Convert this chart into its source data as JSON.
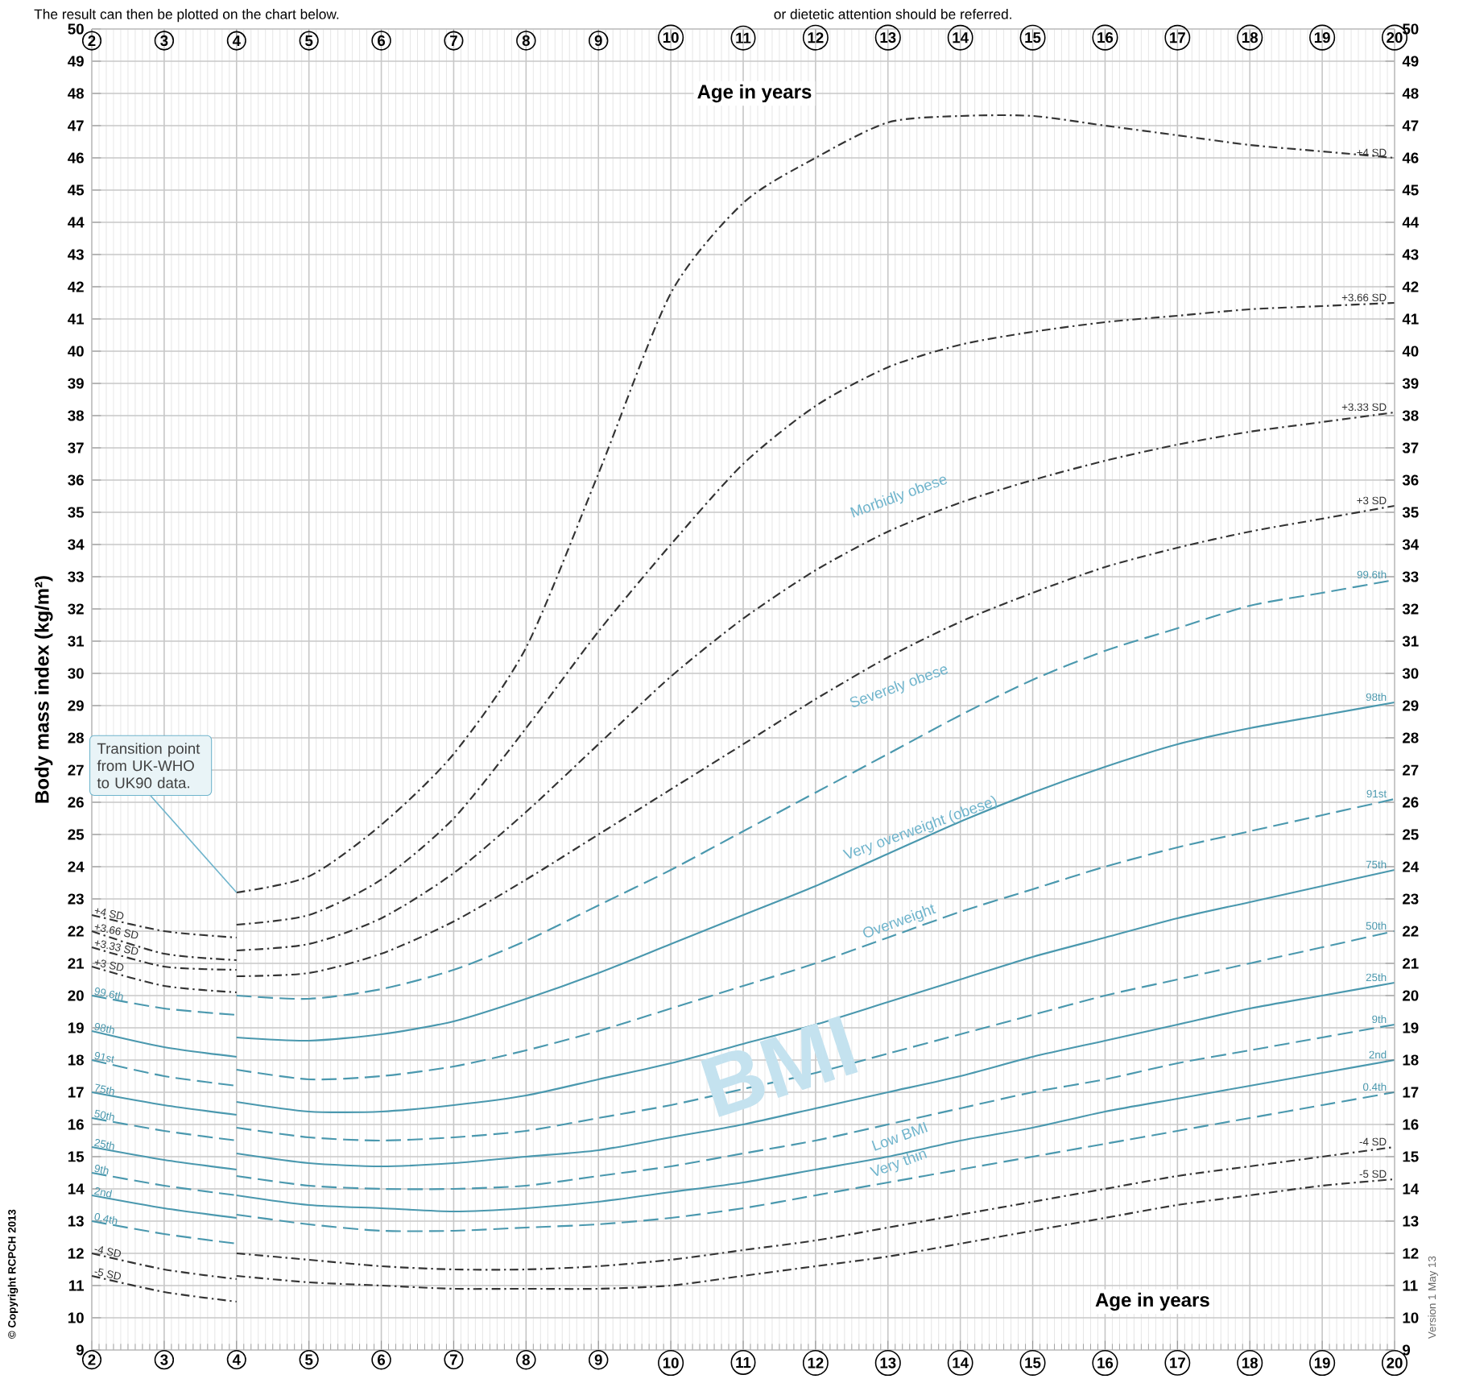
{
  "chart_data": {
    "type": "line",
    "ylabel": "Body mass index (kg/m²)",
    "xlim": [
      2,
      20
    ],
    "xticks": [
      2,
      3,
      4,
      5,
      6,
      7,
      8,
      9,
      10,
      11,
      12,
      13,
      14,
      15,
      16,
      17,
      18,
      19,
      20
    ],
    "x2lim": [
      2,
      20
    ],
    "x2ticks": [
      2,
      3,
      4,
      5,
      6,
      7,
      8,
      9,
      10,
      11,
      12,
      13,
      14,
      15,
      16,
      17,
      18,
      19,
      20
    ],
    "ylim": [
      9,
      50
    ],
    "yticks": [
      9,
      10,
      11,
      12,
      13,
      14,
      15,
      16,
      17,
      18,
      19,
      20,
      21,
      22,
      23,
      24,
      25,
      26,
      27,
      28,
      29,
      30,
      31,
      32,
      33,
      34,
      35,
      36,
      37,
      38,
      39,
      40,
      41,
      42,
      43,
      44,
      45,
      46,
      47,
      48,
      49,
      50
    ],
    "y2lim": [
      9,
      50
    ],
    "y2ticks": [
      9,
      10,
      11,
      12,
      13,
      14,
      15,
      16,
      17,
      18,
      19,
      20,
      21,
      22,
      23,
      24,
      25,
      26,
      27,
      28,
      29,
      30,
      31,
      32,
      33,
      34,
      35,
      36,
      37,
      38,
      39,
      40,
      41,
      42,
      43,
      44,
      45,
      46,
      47,
      48,
      49,
      50
    ],
    "grid": true,
    "series": [
      {
        "name": "+4 SD",
        "color": "#333333",
        "line_style": "dotted",
        "x": [
          2,
          3,
          4
        ],
        "values": [
          22.5,
          22.0,
          21.8
        ]
      },
      {
        "name": "+4 SD",
        "color": "#333333",
        "line_style": "dotted",
        "x": [
          4,
          5,
          6,
          7,
          8,
          9,
          10,
          11,
          12,
          13,
          14,
          15,
          16,
          17,
          18,
          19,
          20
        ],
        "values": [
          23.2,
          23.7,
          25.3,
          27.5,
          30.8,
          36.2,
          41.8,
          44.6,
          46.0,
          47.1,
          47.3,
          47.3,
          47.0,
          46.7,
          46.4,
          46.2,
          46.0
        ]
      },
      {
        "name": "+3.66 SD",
        "color": "#333333",
        "line_style": "dotted",
        "x": [
          2,
          3,
          4
        ],
        "values": [
          22.0,
          21.3,
          21.1
        ]
      },
      {
        "name": "+3.66 SD",
        "color": "#333333",
        "line_style": "dotted",
        "x": [
          4,
          5,
          6,
          7,
          8,
          9,
          10,
          11,
          12,
          13,
          14,
          15,
          16,
          17,
          18,
          19,
          20
        ],
        "values": [
          22.2,
          22.5,
          23.6,
          25.5,
          28.3,
          31.3,
          34.0,
          36.5,
          38.3,
          39.5,
          40.2,
          40.6,
          40.9,
          41.1,
          41.3,
          41.4,
          41.5
        ]
      },
      {
        "name": "+3.33 SD",
        "color": "#333333",
        "line_style": "dotted",
        "x": [
          2,
          3,
          4
        ],
        "values": [
          21.5,
          20.9,
          20.8
        ]
      },
      {
        "name": "+3.33 SD",
        "color": "#333333",
        "line_style": "dotted",
        "x": [
          4,
          5,
          6,
          7,
          8,
          9,
          10,
          11,
          12,
          13,
          14,
          15,
          16,
          17,
          18,
          19,
          20
        ],
        "values": [
          21.4,
          21.6,
          22.4,
          23.8,
          25.7,
          27.8,
          29.9,
          31.7,
          33.2,
          34.4,
          35.3,
          36.0,
          36.6,
          37.1,
          37.5,
          37.8,
          38.1
        ]
      },
      {
        "name": "+3 SD",
        "color": "#333333",
        "line_style": "dotted",
        "x": [
          2,
          3,
          4
        ],
        "values": [
          20.9,
          20.3,
          20.1
        ]
      },
      {
        "name": "+3 SD",
        "color": "#333333",
        "line_style": "dotted",
        "x": [
          4,
          5,
          6,
          7,
          8,
          9,
          10,
          11,
          12,
          13,
          14,
          15,
          16,
          17,
          18,
          19,
          20
        ],
        "values": [
          20.6,
          20.7,
          21.3,
          22.3,
          23.6,
          25.0,
          26.4,
          27.8,
          29.2,
          30.5,
          31.6,
          32.5,
          33.3,
          33.9,
          34.4,
          34.8,
          35.2
        ]
      },
      {
        "name": "99.6th",
        "color": "#4a98ae",
        "line_style": "dashed",
        "x": [
          2,
          3,
          4
        ],
        "values": [
          20.0,
          19.6,
          19.4
        ]
      },
      {
        "name": "99.6th",
        "color": "#4a98ae",
        "line_style": "dashed",
        "x": [
          4,
          5,
          6,
          7,
          8,
          9,
          10,
          11,
          12,
          13,
          14,
          15,
          16,
          17,
          18,
          19,
          20
        ],
        "values": [
          20.0,
          19.9,
          20.2,
          20.8,
          21.7,
          22.8,
          23.9,
          25.1,
          26.3,
          27.5,
          28.7,
          29.8,
          30.7,
          31.4,
          32.1,
          32.5,
          32.9
        ]
      },
      {
        "name": "98th",
        "color": "#4a98ae",
        "line_style": "solid",
        "x": [
          2,
          3,
          4
        ],
        "values": [
          18.9,
          18.4,
          18.1
        ]
      },
      {
        "name": "98th",
        "color": "#4a98ae",
        "line_style": "solid",
        "x": [
          4,
          5,
          6,
          7,
          8,
          9,
          10,
          11,
          12,
          13,
          14,
          15,
          16,
          17,
          18,
          19,
          20
        ],
        "values": [
          18.7,
          18.6,
          18.8,
          19.2,
          19.9,
          20.7,
          21.6,
          22.5,
          23.4,
          24.4,
          25.4,
          26.3,
          27.1,
          27.8,
          28.3,
          28.7,
          29.1
        ]
      },
      {
        "name": "91st",
        "color": "#4a98ae",
        "line_style": "dashed",
        "x": [
          2,
          3,
          4
        ],
        "values": [
          18.0,
          17.5,
          17.2
        ]
      },
      {
        "name": "91st",
        "color": "#4a98ae",
        "line_style": "dashed",
        "x": [
          4,
          5,
          6,
          7,
          8,
          9,
          10,
          11,
          12,
          13,
          14,
          15,
          16,
          17,
          18,
          19,
          20
        ],
        "values": [
          17.7,
          17.4,
          17.5,
          17.8,
          18.3,
          18.9,
          19.6,
          20.3,
          21.0,
          21.8,
          22.6,
          23.3,
          24.0,
          24.6,
          25.1,
          25.6,
          26.1
        ]
      },
      {
        "name": "75th",
        "color": "#4a98ae",
        "line_style": "solid",
        "x": [
          2,
          3,
          4
        ],
        "values": [
          17.0,
          16.6,
          16.3
        ]
      },
      {
        "name": "75th",
        "color": "#4a98ae",
        "line_style": "solid",
        "x": [
          4,
          5,
          6,
          7,
          8,
          9,
          10,
          11,
          12,
          13,
          14,
          15,
          16,
          17,
          18,
          19,
          20
        ],
        "values": [
          16.7,
          16.4,
          16.4,
          16.6,
          16.9,
          17.4,
          17.9,
          18.5,
          19.1,
          19.8,
          20.5,
          21.2,
          21.8,
          22.4,
          22.9,
          23.4,
          23.9
        ]
      },
      {
        "name": "50th",
        "color": "#4a98ae",
        "line_style": "dashed",
        "x": [
          2,
          3,
          4
        ],
        "values": [
          16.2,
          15.8,
          15.5
        ]
      },
      {
        "name": "50th",
        "color": "#4a98ae",
        "line_style": "dashed",
        "x": [
          4,
          5,
          6,
          7,
          8,
          9,
          10,
          11,
          12,
          13,
          14,
          15,
          16,
          17,
          18,
          19,
          20
        ],
        "values": [
          15.9,
          15.6,
          15.5,
          15.6,
          15.8,
          16.2,
          16.6,
          17.1,
          17.6,
          18.2,
          18.8,
          19.4,
          20.0,
          20.5,
          21.0,
          21.5,
          22.0
        ]
      },
      {
        "name": "25th",
        "color": "#4a98ae",
        "line_style": "solid",
        "x": [
          2,
          3,
          4
        ],
        "values": [
          15.3,
          14.9,
          14.6
        ]
      },
      {
        "name": "25th",
        "color": "#4a98ae",
        "line_style": "solid",
        "x": [
          4,
          5,
          6,
          7,
          8,
          9,
          10,
          11,
          12,
          13,
          14,
          15,
          16,
          17,
          18,
          19,
          20
        ],
        "values": [
          15.1,
          14.8,
          14.7,
          14.8,
          15.0,
          15.2,
          15.6,
          16.0,
          16.5,
          17.0,
          17.5,
          18.1,
          18.6,
          19.1,
          19.6,
          20.0,
          20.4
        ]
      },
      {
        "name": "9th",
        "color": "#4a98ae",
        "line_style": "dashed",
        "x": [
          2,
          3,
          4
        ],
        "values": [
          14.5,
          14.1,
          13.8
        ]
      },
      {
        "name": "9th",
        "color": "#4a98ae",
        "line_style": "dashed",
        "x": [
          4,
          5,
          6,
          7,
          8,
          9,
          10,
          11,
          12,
          13,
          14,
          15,
          16,
          17,
          18,
          19,
          20
        ],
        "values": [
          14.4,
          14.1,
          14.0,
          14.0,
          14.1,
          14.4,
          14.7,
          15.1,
          15.5,
          16.0,
          16.5,
          17.0,
          17.4,
          17.9,
          18.3,
          18.7,
          19.1
        ]
      },
      {
        "name": "2nd",
        "color": "#4a98ae",
        "line_style": "solid",
        "x": [
          2,
          3,
          4
        ],
        "values": [
          13.8,
          13.4,
          13.1
        ]
      },
      {
        "name": "2nd",
        "color": "#4a98ae",
        "line_style": "solid",
        "x": [
          4,
          5,
          6,
          7,
          8,
          9,
          10,
          11,
          12,
          13,
          14,
          15,
          16,
          17,
          18,
          19,
          20
        ],
        "values": [
          13.8,
          13.5,
          13.4,
          13.3,
          13.4,
          13.6,
          13.9,
          14.2,
          14.6,
          15.0,
          15.5,
          15.9,
          16.4,
          16.8,
          17.2,
          17.6,
          18.0
        ]
      },
      {
        "name": "0.4th",
        "color": "#4a98ae",
        "line_style": "dashed",
        "x": [
          2,
          3,
          4
        ],
        "values": [
          13.0,
          12.6,
          12.3
        ]
      },
      {
        "name": "0.4th",
        "color": "#4a98ae",
        "line_style": "dashed",
        "x": [
          4,
          5,
          6,
          7,
          8,
          9,
          10,
          11,
          12,
          13,
          14,
          15,
          16,
          17,
          18,
          19,
          20
        ],
        "values": [
          13.2,
          12.9,
          12.7,
          12.7,
          12.8,
          12.9,
          13.1,
          13.4,
          13.8,
          14.2,
          14.6,
          15.0,
          15.4,
          15.8,
          16.2,
          16.6,
          17.0
        ]
      },
      {
        "name": "-4 SD",
        "color": "#333333",
        "line_style": "dotted",
        "x": [
          2,
          3,
          4
        ],
        "values": [
          12.0,
          11.5,
          11.2
        ]
      },
      {
        "name": "-4 SD",
        "color": "#333333",
        "line_style": "dotted",
        "x": [
          4,
          5,
          6,
          7,
          8,
          9,
          10,
          11,
          12,
          13,
          14,
          15,
          16,
          17,
          18,
          19,
          20
        ],
        "values": [
          12.0,
          11.8,
          11.6,
          11.5,
          11.5,
          11.6,
          11.8,
          12.1,
          12.4,
          12.8,
          13.2,
          13.6,
          14.0,
          14.4,
          14.7,
          15.0,
          15.3
        ]
      },
      {
        "name": "-5 SD",
        "color": "#333333",
        "line_style": "dotted",
        "x": [
          2,
          3,
          4
        ],
        "values": [
          11.3,
          10.8,
          10.5
        ]
      },
      {
        "name": "-5 SD",
        "color": "#333333",
        "line_style": "dotted",
        "x": [
          4,
          5,
          6,
          7,
          8,
          9,
          10,
          11,
          12,
          13,
          14,
          15,
          16,
          17,
          18,
          19,
          20
        ],
        "values": [
          11.3,
          11.1,
          11.0,
          10.9,
          10.9,
          10.9,
          11.0,
          11.3,
          11.6,
          11.9,
          12.3,
          12.7,
          13.1,
          13.5,
          13.8,
          14.1,
          14.3
        ]
      }
    ],
    "annotations": [
      {
        "text": "Transition point from UK-WHO to UK90 data.",
        "x": 4,
        "y": 23.2
      },
      "Age in years",
      "Age in years",
      "Morbidly obese",
      "Severely obese",
      "Very overweight (obese)",
      "Overweight",
      "Low BMI",
      "Very thin",
      "BMI",
      "© Copyright RCPCH 2013",
      "Version 1   May 13",
      "The result can then be plotted on the chart below.",
      "or dietetic attention should be referred."
    ]
  }
}
